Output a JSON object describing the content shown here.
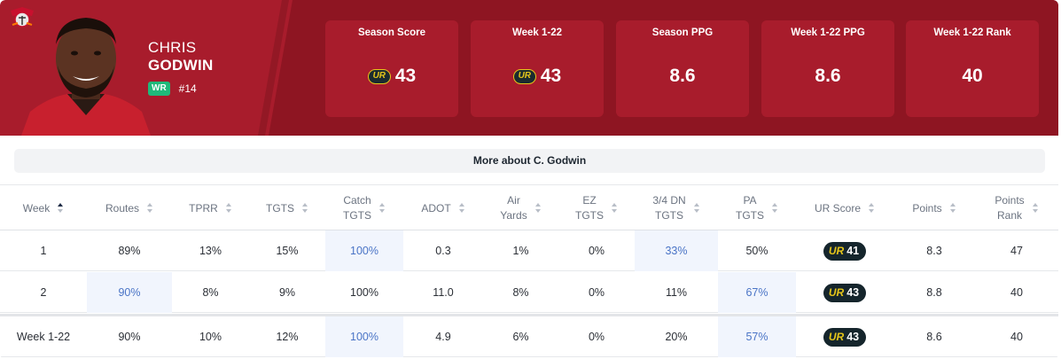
{
  "player": {
    "first_name": "CHRIS",
    "last_name": "GODWIN",
    "position": "WR",
    "jersey": "#14"
  },
  "stats": [
    {
      "title": "Season Score",
      "value": "43",
      "has_ur_logo": true
    },
    {
      "title": "Week 1-22",
      "value": "43",
      "has_ur_logo": true
    },
    {
      "title": "Season PPG",
      "value": "8.6",
      "has_ur_logo": false
    },
    {
      "title": "Week 1-22 PPG",
      "value": "8.6",
      "has_ur_logo": false
    },
    {
      "title": "Week 1-22 Rank",
      "value": "40",
      "has_ur_logo": false
    }
  ],
  "ur_logo_text": "UR",
  "more_button": "More about C. Godwin",
  "table": {
    "columns": [
      {
        "label": "Week",
        "label2": ""
      },
      {
        "label": "Routes",
        "label2": ""
      },
      {
        "label": "TPRR",
        "label2": ""
      },
      {
        "label": "TGTS",
        "label2": ""
      },
      {
        "label": "Catch",
        "label2": "TGTS"
      },
      {
        "label": "ADOT",
        "label2": ""
      },
      {
        "label": "Air",
        "label2": "Yards"
      },
      {
        "label": "EZ",
        "label2": "TGTS"
      },
      {
        "label": "3/4 DN",
        "label2": "TGTS"
      },
      {
        "label": "PA",
        "label2": "TGTS"
      },
      {
        "label": "UR Score",
        "label2": ""
      },
      {
        "label": "Points",
        "label2": ""
      },
      {
        "label": "Points",
        "label2": "Rank"
      }
    ],
    "rows": [
      {
        "cells": [
          "1",
          "89%",
          "13%",
          "15%",
          "100%",
          "0.3",
          "1%",
          "0%",
          "33%",
          "50%",
          "41",
          "8.3",
          "47"
        ]
      },
      {
        "cells": [
          "2",
          "90%",
          "8%",
          "9%",
          "100%",
          "11.0",
          "8%",
          "0%",
          "11%",
          "67%",
          "43",
          "8.8",
          "40"
        ]
      },
      {
        "cells": [
          "Week 1-22",
          "90%",
          "10%",
          "12%",
          "100%",
          "4.9",
          "6%",
          "0%",
          "20%",
          "57%",
          "43",
          "8.6",
          "40"
        ]
      }
    ]
  },
  "colors": {
    "header_red": "#a81c2c",
    "header_dark_red": "#8e1522",
    "highlight_bg": "#f1f5fd",
    "highlight_text": "#4a74c6",
    "ur_gold": "#e5c51a",
    "ur_dark": "#15252c",
    "position_green": "#1fb97a"
  }
}
